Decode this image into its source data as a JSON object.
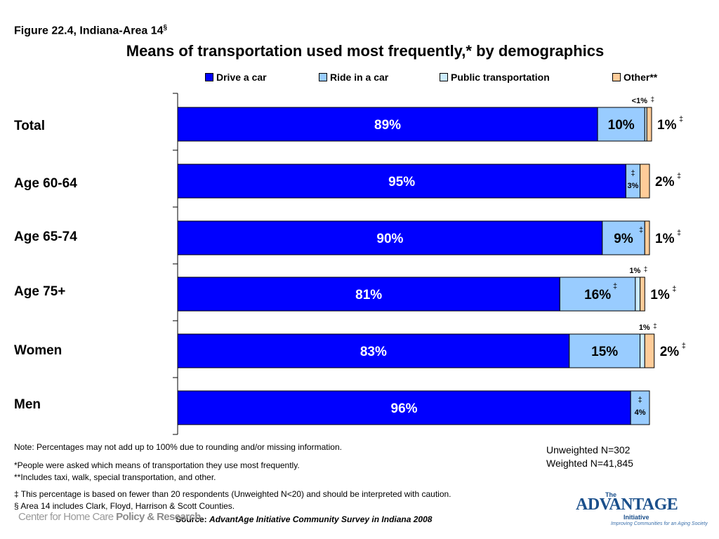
{
  "figure_label": "Figure 22.4, Indiana-Area 14",
  "figure_label_mark": "§",
  "colors": {
    "drive": "#0000ff",
    "ride": "#99ccff",
    "public": "#ccecff",
    "other": "#ffcc99"
  },
  "chart_data": {
    "type": "bar",
    "orientation": "horizontal",
    "stacked": true,
    "title": "Means of transportation used most frequently,* by demographics",
    "legend_position": "top",
    "categories": [
      "Total",
      "Age 60-64",
      "Age 65-74",
      "Age 75+",
      "Women",
      "Men"
    ],
    "series": [
      {
        "name": "Drive a car",
        "values": [
          89,
          95,
          90,
          81,
          83,
          96
        ]
      },
      {
        "name": "Ride in a car",
        "values": [
          10,
          3,
          9,
          16,
          15,
          4
        ]
      },
      {
        "name": "Public transportation",
        "values": [
          0.3,
          0,
          0,
          1,
          1,
          0
        ]
      },
      {
        "name": "Other**",
        "values": [
          1,
          2,
          1,
          1,
          2,
          0
        ]
      }
    ],
    "annotations": [
      {
        "category": "Total",
        "drive": "89%",
        "ride": "10%",
        "public_top": "<1%",
        "public_top_mark": "‡",
        "other": "1%",
        "other_mark": "‡"
      },
      {
        "category": "Age 60-64",
        "drive": "95%",
        "ride": "3%",
        "ride_mark": "‡",
        "other": "2%",
        "other_mark": "‡"
      },
      {
        "category": "Age 65-74",
        "drive": "90%",
        "ride": "9%",
        "ride_mark": "‡",
        "other": "1%",
        "other_mark": "‡"
      },
      {
        "category": "Age 75+",
        "drive": "81%",
        "ride": "16%",
        "ride_mark": "‡",
        "public_top": "1%",
        "public_top_mark": "‡",
        "other": "1%",
        "other_mark": "‡"
      },
      {
        "category": "Women",
        "drive": "83%",
        "ride": "15%",
        "public_top": "1%",
        "public_top_mark": "‡",
        "other": "2%",
        "other_mark": "‡"
      },
      {
        "category": "Men",
        "drive": "96%",
        "ride": "4%",
        "ride_mark": "‡"
      }
    ]
  },
  "notes": {
    "note1": "Note: Percentages may not add up to 100% due to rounding and/or missing information.",
    "note2": "*People were asked which means of transportation they use most frequently.",
    "note3": "**Includes taxi, walk, special transportation, and other.",
    "note4": "‡ This percentage is based on fewer than 20 respondents (Unweighted N<20) and should be interpreted with caution.",
    "note5": "§ Area 14 includes Clark, Floyd, Harrison & Scott Counties."
  },
  "sample": {
    "unweighted": "Unweighted N=302",
    "weighted": "Weighted N=41,845"
  },
  "source": {
    "prefix": "Source:",
    "text": "AdvantAge Initiative Community Survey in Indiana 2008"
  },
  "logos": {
    "left_a": "Center for Home Care ",
    "left_b": "Policy & Research",
    "right_the": "The",
    "right_brand": "ADVANTAGE",
    "right_initiative": "Initiative",
    "right_tagline": "Improving Communities for an Aging Society"
  }
}
